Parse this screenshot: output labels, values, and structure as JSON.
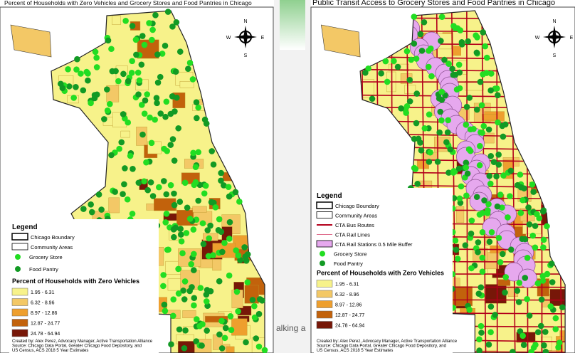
{
  "left_map": {
    "title": "Percent of Households with Zero Vehicles and Grocery Stores and Food Pantries in Chicago",
    "compass": [
      "N",
      "S",
      "E",
      "W"
    ],
    "legend_title": "Legend",
    "items": [
      "Chicago Boundary",
      "Community Areas",
      "Grocery Store",
      "Food Pantry"
    ],
    "scale_title": "Percent of Households with Zero Vehicles",
    "classes": [
      "1.95 - 6.31",
      "6.32 - 8.96",
      "8.97 - 12.86",
      "12.87 - 24.77",
      "24.78 - 64.94"
    ],
    "class_colors": [
      "#f7f28a",
      "#f3c866",
      "#ee9f2e",
      "#c2620c",
      "#771708"
    ],
    "credits": [
      "Created by: Alex Perez, Advocacy Manager, Active Transportation Alliance",
      "Source: Chicago Data Portal, Greater Chicago Food Depository, and",
      "US Census, ACS 2018 5 Year Estimates"
    ]
  },
  "right_map": {
    "title": "Public Transit Access to Grocery Stores and Food Pantries in Chicago",
    "compass": [
      "N",
      "S",
      "E",
      "W"
    ],
    "legend_title": "Legend",
    "items": [
      "Chicago Boundary",
      "Community Areas",
      "CTA Bus Routes",
      "CTA Rail Lines",
      "CTA Rail Stations 0.5 Mile Buffer",
      "Grocery Store",
      "Food Pantry"
    ],
    "scale_title": "Percent of Households with Zero Vehicles",
    "classes": [
      "1.95 - 6.31",
      "6.32 - 8.96",
      "8.97 - 12.86",
      "12.87 - 24.77",
      "24.78 - 64.94"
    ],
    "class_colors": [
      "#f7f28a",
      "#f3c866",
      "#ee9f2e",
      "#c2620c",
      "#771708"
    ],
    "credits": [
      "Created by: Alex Perez, Advocacy Manager, Active Transportation Alliance",
      "Source: Chicago Data Portal, Greater Chicago Food Depository, and",
      "US Census, ACS 2018 5 Year Estimates"
    ]
  },
  "background_text": "alking a"
}
